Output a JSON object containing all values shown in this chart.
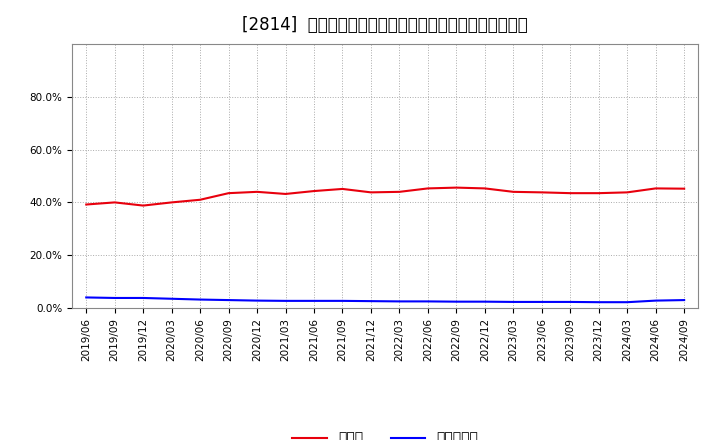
{
  "title": "[2814]  現預金、有利子負債の総資産に対する比率の推移",
  "x_labels": [
    "2019/06",
    "2019/09",
    "2019/12",
    "2020/03",
    "2020/06",
    "2020/09",
    "2020/12",
    "2021/03",
    "2021/06",
    "2021/09",
    "2021/12",
    "2022/03",
    "2022/06",
    "2022/09",
    "2022/12",
    "2023/03",
    "2023/06",
    "2023/09",
    "2023/12",
    "2024/03",
    "2024/06",
    "2024/09"
  ],
  "cash_ratio": [
    0.392,
    0.4,
    0.388,
    0.4,
    0.41,
    0.435,
    0.44,
    0.432,
    0.443,
    0.451,
    0.438,
    0.44,
    0.453,
    0.456,
    0.453,
    0.44,
    0.438,
    0.435,
    0.435,
    0.438,
    0.453,
    0.452
  ],
  "debt_ratio": [
    0.04,
    0.038,
    0.038,
    0.035,
    0.032,
    0.03,
    0.028,
    0.027,
    0.027,
    0.027,
    0.026,
    0.025,
    0.025,
    0.024,
    0.024,
    0.023,
    0.023,
    0.023,
    0.022,
    0.022,
    0.028,
    0.03
  ],
  "cash_color": "#e8000d",
  "debt_color": "#0000ff",
  "grid_color": "#aaaaaa",
  "bg_color": "#ffffff",
  "plot_bg_color": "#ffffff",
  "ylim": [
    0.0,
    1.0
  ],
  "yticks": [
    0.0,
    0.2,
    0.4,
    0.6,
    0.8
  ],
  "legend_cash": "現預金",
  "legend_debt": "有利子負債",
  "title_fontsize": 12,
  "tick_fontsize": 7.5,
  "legend_fontsize": 10
}
